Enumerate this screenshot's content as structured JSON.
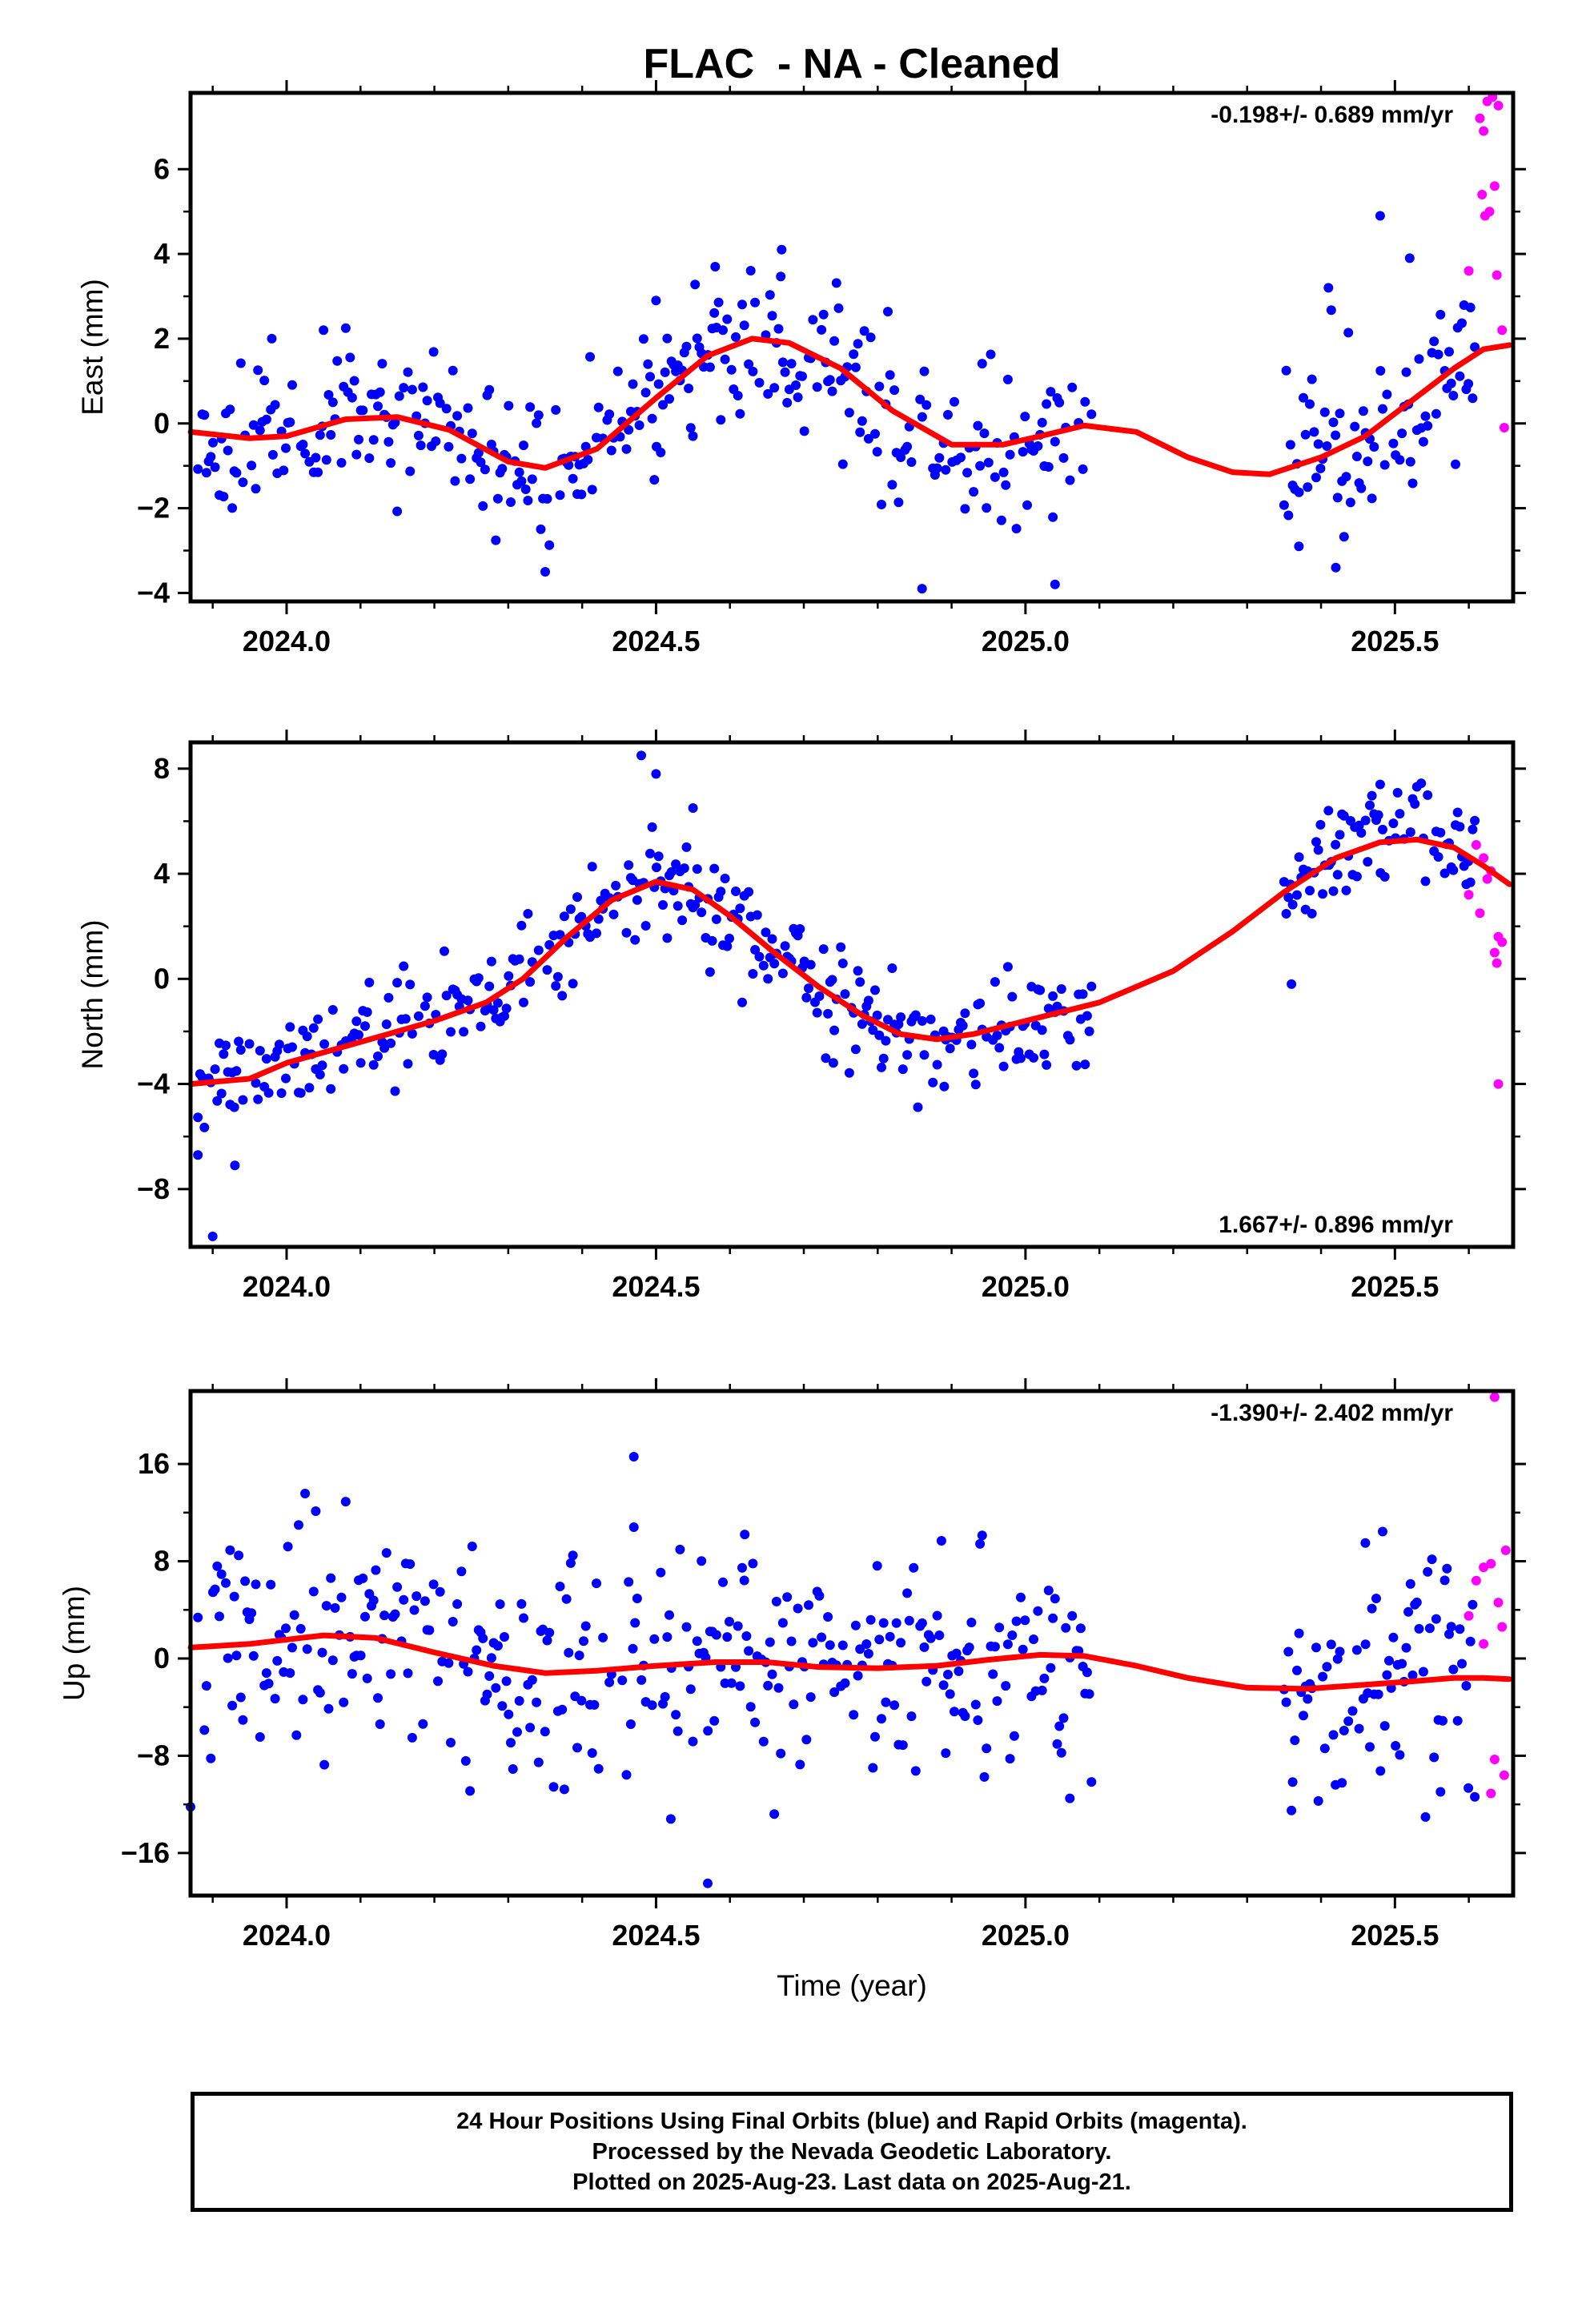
{
  "title": "FLAC  - NA - Cleaned",
  "legend": {
    "lines": [
      "24 Hour Positions Using Final Orbits (blue) and Rapid Orbits (magenta).",
      "Processed by the Nevada Geodetic Laboratory.",
      "Plotted on 2025-Aug-23. Last data on 2025-Aug-21."
    ]
  },
  "colors": {
    "final": "#0000ff",
    "rapid": "#ff00ff",
    "fit": "#ff0000",
    "frame": "#000000"
  },
  "xaxis": {
    "label": "Time (year)",
    "lim": [
      2023.87,
      2025.66
    ],
    "ticks": [
      2024.0,
      2024.5,
      2025.0,
      2025.5
    ],
    "tick_labels": [
      "2024.0",
      "2024.5",
      "2025.0",
      "2025.5"
    ],
    "minor_ticks": [
      2023.9,
      2024.1,
      2024.2,
      2024.3,
      2024.4,
      2024.6,
      2024.7,
      2024.8,
      2024.9,
      2025.1,
      2025.2,
      2025.3,
      2025.4,
      2025.6
    ]
  },
  "chart_data": [
    {
      "type": "scatter",
      "component": "east",
      "ylabel": "East (mm)",
      "ylim": [
        -4.2,
        7.8
      ],
      "yticks": [
        -4,
        -2,
        0,
        2,
        4,
        6
      ],
      "grid": false,
      "rate_text": "-0.198+/- 0.689 mm/yr",
      "rate_position": "top-right",
      "trend": [
        [
          2023.87,
          -0.2
        ],
        [
          2023.95,
          -0.35
        ],
        [
          2024.0,
          -0.3
        ],
        [
          2024.08,
          0.1
        ],
        [
          2024.15,
          0.15
        ],
        [
          2024.22,
          -0.15
        ],
        [
          2024.3,
          -0.9
        ],
        [
          2024.35,
          -1.05
        ],
        [
          2024.42,
          -0.6
        ],
        [
          2024.5,
          0.6
        ],
        [
          2024.57,
          1.6
        ],
        [
          2024.63,
          2.0
        ],
        [
          2024.68,
          1.9
        ],
        [
          2024.75,
          1.3
        ],
        [
          2024.82,
          0.3
        ],
        [
          2024.9,
          -0.5
        ],
        [
          2024.97,
          -0.5
        ],
        [
          2025.02,
          -0.3
        ],
        [
          2025.08,
          -0.05
        ],
        [
          2025.15,
          -0.2
        ],
        [
          2025.22,
          -0.8
        ],
        [
          2025.28,
          -1.15
        ],
        [
          2025.33,
          -1.2
        ],
        [
          2025.4,
          -0.8
        ],
        [
          2025.46,
          -0.3
        ],
        [
          2025.52,
          0.5
        ],
        [
          2025.58,
          1.3
        ],
        [
          2025.62,
          1.75
        ],
        [
          2025.655,
          1.85
        ]
      ],
      "seed": 11,
      "noise": 0.9,
      "final_segments": [
        [
          2023.88,
          2025.09
        ],
        [
          2025.35,
          2025.61
        ]
      ],
      "extra_final": [
        [
          2024.35,
          -3.5
        ],
        [
          2024.86,
          -3.9
        ],
        [
          2025.04,
          -3.8
        ],
        [
          2025.42,
          -3.4
        ],
        [
          2025.37,
          -2.9
        ],
        [
          2024.67,
          4.1
        ],
        [
          2024.58,
          3.7
        ],
        [
          2025.48,
          4.9
        ],
        [
          2025.52,
          3.9
        ],
        [
          2025.41,
          3.2
        ],
        [
          2024.5,
          2.9
        ],
        [
          2023.98,
          2.0
        ],
        [
          2024.05,
          2.2
        ]
      ],
      "rapid_points": [
        [
          2025.615,
          7.2
        ],
        [
          2025.62,
          6.9
        ],
        [
          2025.625,
          7.6
        ],
        [
          2025.632,
          7.7
        ],
        [
          2025.64,
          7.5
        ],
        [
          2025.618,
          5.4
        ],
        [
          2025.628,
          5.0
        ],
        [
          2025.635,
          5.6
        ],
        [
          2025.622,
          4.9
        ],
        [
          2025.6,
          3.6
        ],
        [
          2025.638,
          3.5
        ],
        [
          2025.645,
          2.2
        ],
        [
          2025.648,
          -0.1
        ]
      ]
    },
    {
      "type": "scatter",
      "component": "north",
      "ylabel": "North (mm)",
      "ylim": [
        -10.2,
        9.0
      ],
      "yticks": [
        -8,
        -4,
        0,
        4,
        8
      ],
      "grid": false,
      "rate_text": "1.667+/- 0.896 mm/yr",
      "rate_position": "bottom-right",
      "trend": [
        [
          2023.87,
          -4.0
        ],
        [
          2023.95,
          -3.8
        ],
        [
          2024.0,
          -3.2
        ],
        [
          2024.1,
          -2.4
        ],
        [
          2024.2,
          -1.6
        ],
        [
          2024.27,
          -0.9
        ],
        [
          2024.32,
          0.0
        ],
        [
          2024.38,
          1.6
        ],
        [
          2024.44,
          3.0
        ],
        [
          2024.5,
          3.7
        ],
        [
          2024.55,
          3.4
        ],
        [
          2024.6,
          2.4
        ],
        [
          2024.66,
          1.0
        ],
        [
          2024.72,
          -0.3
        ],
        [
          2024.78,
          -1.4
        ],
        [
          2024.83,
          -2.1
        ],
        [
          2024.88,
          -2.3
        ],
        [
          2024.93,
          -2.1
        ],
        [
          2025.0,
          -1.6
        ],
        [
          2025.1,
          -0.9
        ],
        [
          2025.2,
          0.3
        ],
        [
          2025.28,
          1.8
        ],
        [
          2025.35,
          3.3
        ],
        [
          2025.42,
          4.6
        ],
        [
          2025.48,
          5.2
        ],
        [
          2025.53,
          5.3
        ],
        [
          2025.58,
          5.0
        ],
        [
          2025.62,
          4.3
        ],
        [
          2025.655,
          3.6
        ]
      ],
      "seed": 23,
      "noise": 1.0,
      "final_segments": [
        [
          2023.88,
          2025.09
        ],
        [
          2025.35,
          2025.61
        ]
      ],
      "extra_final": [
        [
          2023.9,
          -9.8
        ],
        [
          2023.88,
          -6.7
        ],
        [
          2023.93,
          -7.1
        ],
        [
          2024.48,
          8.5
        ],
        [
          2024.5,
          7.8
        ],
        [
          2024.55,
          6.5
        ],
        [
          2025.48,
          7.4
        ],
        [
          2025.41,
          6.4
        ],
        [
          2024.74,
          -3.2
        ],
        [
          2024.89,
          -4.1
        ],
        [
          2025.36,
          -0.2
        ]
      ],
      "rapid_points": [
        [
          2025.61,
          5.1
        ],
        [
          2025.62,
          4.6
        ],
        [
          2025.63,
          4.1
        ],
        [
          2025.6,
          3.2
        ],
        [
          2025.615,
          2.5
        ],
        [
          2025.625,
          3.8
        ],
        [
          2025.64,
          1.6
        ],
        [
          2025.635,
          1.0
        ],
        [
          2025.645,
          1.4
        ],
        [
          2025.638,
          0.6
        ],
        [
          2025.64,
          -4.0
        ]
      ]
    },
    {
      "type": "scatter",
      "component": "up",
      "ylabel": "Up (mm)",
      "ylim": [
        -19.5,
        22.0
      ],
      "yticks": [
        -16,
        -8,
        0,
        8,
        16
      ],
      "grid": false,
      "rate_text": "-1.390+/- 2.402 mm/yr",
      "rate_position": "top-right",
      "trend": [
        [
          2023.87,
          0.9
        ],
        [
          2023.95,
          1.2
        ],
        [
          2024.05,
          1.9
        ],
        [
          2024.12,
          1.7
        ],
        [
          2024.2,
          0.5
        ],
        [
          2024.28,
          -0.6
        ],
        [
          2024.35,
          -1.2
        ],
        [
          2024.42,
          -1.0
        ],
        [
          2024.5,
          -0.6
        ],
        [
          2024.58,
          -0.3
        ],
        [
          2024.65,
          -0.3
        ],
        [
          2024.72,
          -0.7
        ],
        [
          2024.8,
          -0.8
        ],
        [
          2024.88,
          -0.6
        ],
        [
          2024.95,
          -0.1
        ],
        [
          2025.02,
          0.3
        ],
        [
          2025.08,
          0.2
        ],
        [
          2025.15,
          -0.6
        ],
        [
          2025.22,
          -1.6
        ],
        [
          2025.3,
          -2.4
        ],
        [
          2025.38,
          -2.5
        ],
        [
          2025.45,
          -2.2
        ],
        [
          2025.52,
          -1.9
        ],
        [
          2025.58,
          -1.6
        ],
        [
          2025.62,
          -1.6
        ],
        [
          2025.655,
          -1.7
        ]
      ],
      "seed": 37,
      "noise": 4.5,
      "final_segments": [
        [
          2023.88,
          2025.09
        ],
        [
          2025.35,
          2025.61
        ]
      ],
      "extra_final": [
        [
          2024.47,
          16.6
        ],
        [
          2024.08,
          12.9
        ],
        [
          2024.57,
          -18.5
        ],
        [
          2024.52,
          -13.2
        ],
        [
          2023.87,
          -12.2
        ],
        [
          2024.66,
          -12.8
        ],
        [
          2025.06,
          -11.5
        ],
        [
          2025.36,
          -12.5
        ],
        [
          2024.47,
          10.8
        ],
        [
          2025.46,
          9.5
        ],
        [
          2024.62,
          10.2
        ]
      ],
      "rapid_points": [
        [
          2025.635,
          21.5
        ],
        [
          2025.62,
          7.5
        ],
        [
          2025.63,
          7.8
        ],
        [
          2025.65,
          8.9
        ],
        [
          2025.61,
          6.4
        ],
        [
          2025.64,
          4.6
        ],
        [
          2025.6,
          3.5
        ],
        [
          2025.62,
          1.2
        ],
        [
          2025.645,
          2.6
        ],
        [
          2025.635,
          -8.3
        ],
        [
          2025.648,
          -9.6
        ],
        [
          2025.63,
          -11.1
        ]
      ]
    }
  ]
}
